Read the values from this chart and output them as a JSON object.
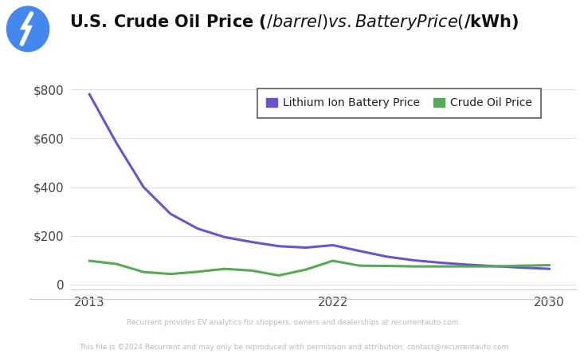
{
  "title": "U.S. Crude Oil Price ($/barrel)vs. Battery Price ($/kWh)",
  "background_color": "#ffffff",
  "plot_bg_color": "#ffffff",
  "battery_color": "#6655cc",
  "oil_color": "#55aa55",
  "battery_label": "Lithium Ion Battery Price",
  "oil_label": "Crude Oil Price",
  "footer_line1": "Recurrent provides EV analytics for shoppers, owners and dealerships at recurrentauto.com.",
  "footer_line2": "This file is ©2024 Recurrent and may only be reproduced with permission and attribution: contact@recurrentauto.com",
  "ylim": [
    -20,
    870
  ],
  "yticks": [
    0,
    200,
    400,
    600,
    800
  ],
  "ytick_labels": [
    "0",
    "$200",
    "$400",
    "$600",
    "$800"
  ],
  "xticks": [
    2013,
    2022,
    2030
  ],
  "battery_years": [
    2013,
    2014,
    2015,
    2016,
    2017,
    2018,
    2019,
    2020,
    2021,
    2022,
    2023,
    2024,
    2025,
    2026,
    2027,
    2028,
    2029,
    2030
  ],
  "battery_prices": [
    780,
    580,
    400,
    290,
    230,
    195,
    175,
    158,
    152,
    162,
    138,
    115,
    100,
    90,
    82,
    76,
    70,
    65
  ],
  "oil_years": [
    2013,
    2014,
    2015,
    2016,
    2017,
    2018,
    2019,
    2020,
    2021,
    2022,
    2023,
    2024,
    2025,
    2026,
    2027,
    2028,
    2029,
    2030
  ],
  "oil_prices": [
    98,
    85,
    52,
    44,
    53,
    65,
    58,
    38,
    62,
    98,
    78,
    77,
    75,
    75,
    75,
    75,
    78,
    80
  ],
  "xlim": [
    2012.3,
    2031.0
  ],
  "icon_color": "#4488ee",
  "legend_fontsize": 10,
  "title_fontsize": 15,
  "grid_color": "#e0e0e0",
  "tick_color": "#444444",
  "separator_color": "#cccccc",
  "footer_color": "#bbbbbb"
}
